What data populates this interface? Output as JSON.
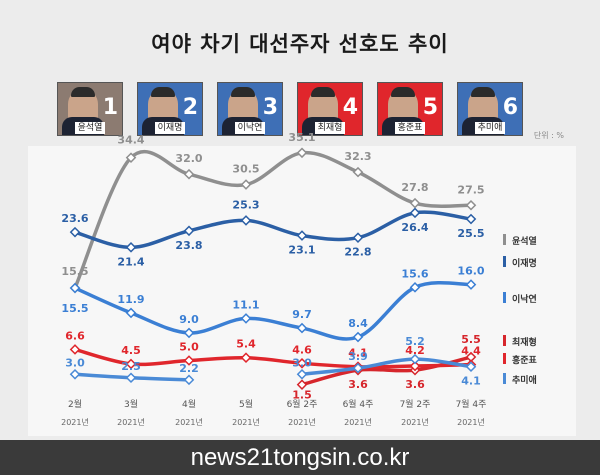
{
  "title": "여야 차기 대선주자 선호도 추이",
  "unit": "단위 : %",
  "watermark": "news21tongsin.co.kr",
  "candidates": [
    {
      "name": "윤석열",
      "num": "1",
      "bg": "#8c7b71"
    },
    {
      "name": "이재명",
      "num": "2",
      "bg": "#3e6fb6"
    },
    {
      "name": "이낙연",
      "num": "3",
      "bg": "#3e6fb6"
    },
    {
      "name": "최재형",
      "num": "4",
      "bg": "#e0262c"
    },
    {
      "name": "홍준표",
      "num": "5",
      "bg": "#e0262c"
    },
    {
      "name": "추미애",
      "num": "6",
      "bg": "#3e6fb6"
    }
  ],
  "chart_data": {
    "type": "line",
    "categories": [
      "2월",
      "3월",
      "4월",
      "5월",
      "6월 2주",
      "6월 4주",
      "7월 2주",
      "7월 4주"
    ],
    "category_sub": "2021년",
    "series": [
      {
        "name": "윤석열",
        "color": "#8f8f8f",
        "values": [
          15.5,
          34.4,
          32.0,
          30.5,
          35.1,
          32.3,
          27.8,
          27.5
        ]
      },
      {
        "name": "이재명",
        "color": "#2b5fa5",
        "values": [
          23.6,
          21.4,
          23.8,
          25.3,
          23.1,
          22.8,
          26.4,
          25.5
        ]
      },
      {
        "name": "이낙연",
        "color": "#3b7fd4",
        "values": [
          15.5,
          11.9,
          9.0,
          11.1,
          9.7,
          8.4,
          15.6,
          16.0
        ]
      },
      {
        "name": "최재형",
        "color": "#d6262c",
        "values": [
          null,
          null,
          null,
          null,
          1.5,
          3.6,
          3.6,
          5.5
        ]
      },
      {
        "name": "홍준표",
        "color": "#e0262c",
        "values": [
          6.6,
          4.5,
          5.0,
          5.4,
          4.6,
          4.1,
          4.2,
          4.4
        ]
      },
      {
        "name": "추미애",
        "color": "#4a8ad6",
        "values": [
          3.0,
          2.5,
          2.2,
          null,
          3.0,
          3.9,
          5.2,
          4.1
        ]
      }
    ],
    "legend_position": "right"
  }
}
